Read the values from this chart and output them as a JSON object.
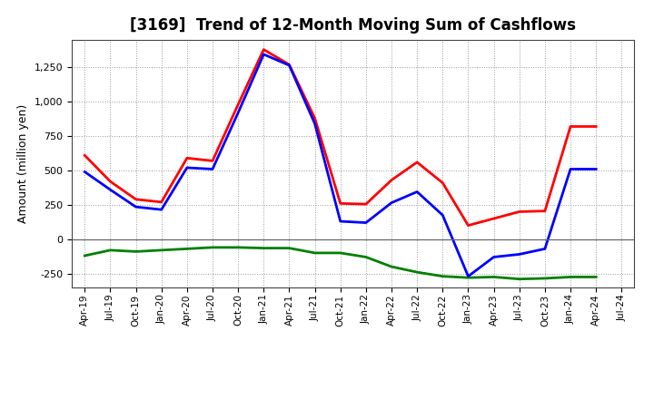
{
  "title": "[3169]  Trend of 12-Month Moving Sum of Cashflows",
  "ylabel": "Amount (million yen)",
  "x_labels": [
    "Apr-19",
    "Jul-19",
    "Oct-19",
    "Jan-20",
    "Apr-20",
    "Jul-20",
    "Oct-20",
    "Jan-21",
    "Apr-21",
    "Jul-21",
    "Oct-21",
    "Jan-22",
    "Apr-22",
    "Jul-22",
    "Oct-22",
    "Jan-23",
    "Apr-23",
    "Jul-23",
    "Oct-23",
    "Jan-24",
    "Apr-24",
    "Jul-24"
  ],
  "operating": [
    610,
    420,
    290,
    270,
    590,
    570,
    980,
    1380,
    1270,
    880,
    260,
    255,
    430,
    560,
    410,
    100,
    150,
    200,
    205,
    820,
    820,
    null
  ],
  "investing": [
    -120,
    -80,
    -90,
    -80,
    -70,
    -60,
    -60,
    -65,
    -65,
    -100,
    -100,
    -130,
    -200,
    -240,
    -270,
    -280,
    -275,
    -290,
    -285,
    -275,
    -275,
    null
  ],
  "free": [
    490,
    360,
    235,
    215,
    520,
    510,
    920,
    1345,
    1265,
    840,
    130,
    120,
    265,
    345,
    175,
    -270,
    -130,
    -110,
    -70,
    510,
    510,
    null
  ],
  "operating_color": "#ff0000",
  "investing_color": "#008000",
  "free_color": "#0000ff",
  "ylim": [
    -350,
    1450
  ],
  "yticks": [
    -250,
    0,
    250,
    500,
    750,
    1000,
    1250
  ],
  "bg_color": "#ffffff",
  "grid_color": "#999999",
  "title_fontsize": 12,
  "ylabel_fontsize": 9,
  "legend_fontsize": 9,
  "linewidth": 2.0
}
